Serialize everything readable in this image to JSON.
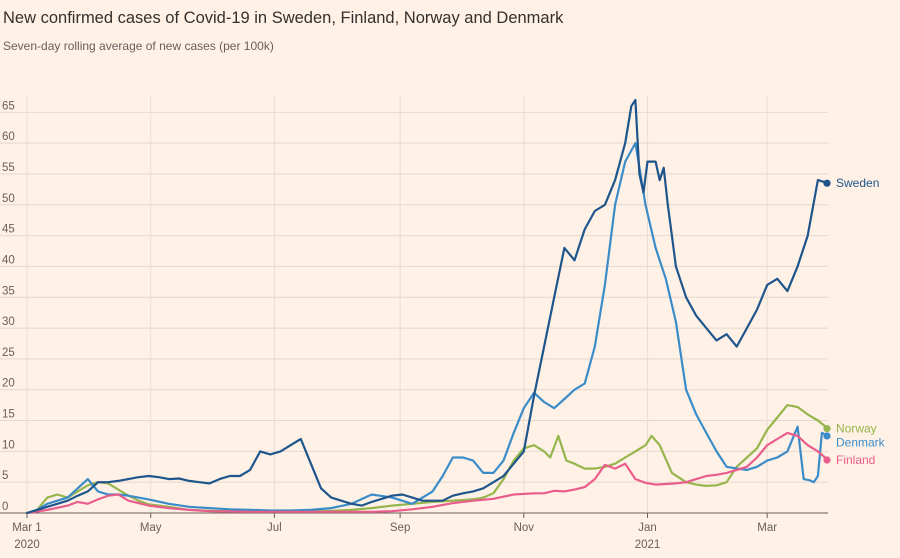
{
  "title": "New confirmed cases of Covid-19 in Sweden, Finland, Norway and Denmark",
  "subtitle": "Seven-day rolling average of new cases (per 100k)",
  "chart_data": {
    "type": "line",
    "title": "New confirmed cases of Covid-19 in Sweden, Finland, Norway and Denmark",
    "subtitle": "Seven-day rolling average of new cases (per 100k)",
    "xlabel": "",
    "ylabel": "",
    "x_unit": "days since 1 Mar 2020",
    "xlim": [
      0,
      395
    ],
    "ylim": [
      0,
      67
    ],
    "yticks": [
      0,
      5,
      10,
      15,
      20,
      25,
      30,
      35,
      40,
      45,
      50,
      55,
      60,
      65
    ],
    "xticks": [
      {
        "day": 0,
        "label": "Mar 1",
        "sublabel": "2020"
      },
      {
        "day": 61,
        "label": "May",
        "sublabel": ""
      },
      {
        "day": 122,
        "label": "Jul",
        "sublabel": ""
      },
      {
        "day": 184,
        "label": "Sep",
        "sublabel": ""
      },
      {
        "day": 245,
        "label": "Nov",
        "sublabel": ""
      },
      {
        "day": 306,
        "label": "Jan",
        "sublabel": "2021"
      },
      {
        "day": 365,
        "label": "Mar",
        "sublabel": ""
      }
    ],
    "grid": true,
    "legend": "right-end labels",
    "series": [
      {
        "name": "Norway",
        "color": "#96b54c",
        "end_value": 13.7,
        "x": [
          0,
          5,
          10,
          15,
          20,
          25,
          30,
          35,
          40,
          45,
          50,
          55,
          60,
          70,
          80,
          90,
          100,
          110,
          120,
          130,
          140,
          150,
          160,
          170,
          180,
          190,
          200,
          210,
          220,
          225,
          230,
          235,
          240,
          245,
          250,
          255,
          258,
          262,
          266,
          270,
          275,
          280,
          285,
          290,
          295,
          300,
          305,
          308,
          312,
          318,
          325,
          330,
          335,
          340,
          345,
          350,
          355,
          360,
          365,
          370,
          375,
          380,
          385,
          390,
          395
        ],
        "values": [
          0,
          0.5,
          2.5,
          3,
          2.5,
          3.5,
          4.5,
          5,
          4.8,
          3.8,
          2.8,
          2,
          1.4,
          1.0,
          0.5,
          0.35,
          0.3,
          0.3,
          0.3,
          0.3,
          0.3,
          0.35,
          0.5,
          0.8,
          1.2,
          1.5,
          1.8,
          2.0,
          2.2,
          2.5,
          3.2,
          5.5,
          8.5,
          10.5,
          11,
          10,
          9,
          12.5,
          8.5,
          8,
          7.2,
          7.2,
          7.5,
          8,
          9,
          10,
          11,
          12.5,
          11,
          6.5,
          5,
          4.6,
          4.4,
          4.5,
          5,
          7.5,
          9,
          10.5,
          13.5,
          15.5,
          17.5,
          17.2,
          16,
          15,
          13.7
        ]
      },
      {
        "name": "Denmark",
        "color": "#3a8cc9",
        "end_value": 12.5,
        "x": [
          0,
          5,
          10,
          15,
          20,
          25,
          30,
          35,
          40,
          45,
          50,
          55,
          60,
          70,
          80,
          90,
          100,
          110,
          120,
          130,
          140,
          150,
          160,
          170,
          180,
          190,
          200,
          205,
          210,
          215,
          220,
          225,
          230,
          235,
          240,
          245,
          250,
          255,
          260,
          265,
          270,
          275,
          280,
          285,
          290,
          295,
          300,
          305,
          310,
          315,
          320,
          325,
          330,
          335,
          340,
          345,
          350,
          355,
          360,
          365,
          370,
          375,
          380,
          383,
          386,
          388,
          390,
          392,
          395
        ],
        "values": [
          0,
          0.5,
          1.5,
          2,
          2.5,
          4,
          5.5,
          3.5,
          3,
          3,
          2.8,
          2.5,
          2.2,
          1.5,
          1.0,
          0.8,
          0.6,
          0.5,
          0.4,
          0.4,
          0.5,
          0.8,
          1.5,
          3,
          2.5,
          1.5,
          3.5,
          6,
          9,
          9,
          8.5,
          6.5,
          6.5,
          8.5,
          13,
          17,
          19.5,
          18,
          17,
          18.5,
          20,
          21,
          27,
          37,
          50,
          57,
          60,
          50,
          43,
          38,
          31,
          20,
          16,
          13,
          10,
          7.5,
          7.2,
          7,
          7.5,
          8.5,
          9,
          10,
          14,
          5.5,
          5.3,
          5.0,
          6,
          13,
          12.5
        ]
      },
      {
        "name": "Finland",
        "color": "#e95d8c",
        "end_value": 8.6,
        "x": [
          0,
          10,
          20,
          25,
          30,
          35,
          40,
          45,
          50,
          60,
          70,
          80,
          90,
          100,
          110,
          120,
          130,
          140,
          150,
          160,
          170,
          180,
          190,
          200,
          210,
          220,
          230,
          240,
          250,
          255,
          260,
          265,
          270,
          275,
          280,
          285,
          290,
          295,
          300,
          305,
          310,
          315,
          320,
          325,
          330,
          335,
          340,
          345,
          350,
          355,
          360,
          365,
          370,
          375,
          380,
          385,
          390,
          395
        ],
        "values": [
          0,
          0.5,
          1.2,
          1.8,
          1.5,
          2.2,
          2.8,
          3,
          2,
          1.2,
          0.8,
          0.5,
          0.3,
          0.25,
          0.2,
          0.2,
          0.2,
          0.2,
          0.2,
          0.2,
          0.2,
          0.3,
          0.6,
          1.0,
          1.6,
          2.0,
          2.3,
          3,
          3.2,
          3.2,
          3.6,
          3.5,
          3.8,
          4.2,
          5.5,
          7.8,
          7.2,
          8,
          5.5,
          4.9,
          4.6,
          4.7,
          4.8,
          5,
          5.5,
          6,
          6.2,
          6.5,
          7,
          7.5,
          9,
          11,
          12,
          13,
          12.5,
          11,
          10,
          8.6
        ]
      },
      {
        "name": "Sweden",
        "color": "#1e558c",
        "end_value": 53.5,
        "x": [
          0,
          5,
          10,
          15,
          20,
          25,
          30,
          35,
          40,
          45,
          50,
          55,
          60,
          65,
          70,
          75,
          80,
          85,
          90,
          95,
          100,
          105,
          110,
          115,
          120,
          125,
          130,
          135,
          140,
          145,
          150,
          155,
          160,
          165,
          170,
          175,
          180,
          185,
          190,
          195,
          200,
          205,
          210,
          215,
          220,
          225,
          230,
          235,
          240,
          245,
          250,
          255,
          260,
          265,
          270,
          275,
          280,
          285,
          290,
          295,
          298,
          300,
          302,
          304,
          306,
          308,
          310,
          312,
          314,
          316,
          318,
          320,
          322,
          325,
          330,
          335,
          340,
          345,
          350,
          355,
          360,
          365,
          370,
          375,
          380,
          385,
          390,
          395
        ],
        "values": [
          0,
          0.5,
          1,
          1.5,
          2,
          2.8,
          3.5,
          5,
          5,
          5.2,
          5.5,
          5.8,
          6,
          5.8,
          5.5,
          5.6,
          5.2,
          5,
          4.8,
          5.5,
          6,
          6,
          7,
          10,
          9.5,
          10,
          11,
          12,
          8,
          4,
          2.5,
          2,
          1.5,
          1.2,
          1.8,
          2.3,
          2.8,
          3,
          2.5,
          2,
          2,
          2,
          2.8,
          3.2,
          3.5,
          4,
          5,
          6,
          8,
          10,
          19,
          27,
          35,
          43,
          41,
          46,
          49,
          50,
          54,
          60,
          66,
          67,
          55,
          52,
          57,
          57,
          57,
          54,
          56,
          50,
          45,
          40,
          38,
          35,
          32,
          30,
          28,
          29,
          27,
          30,
          33,
          37,
          38,
          36,
          40,
          45,
          54,
          53.5
        ]
      }
    ]
  }
}
